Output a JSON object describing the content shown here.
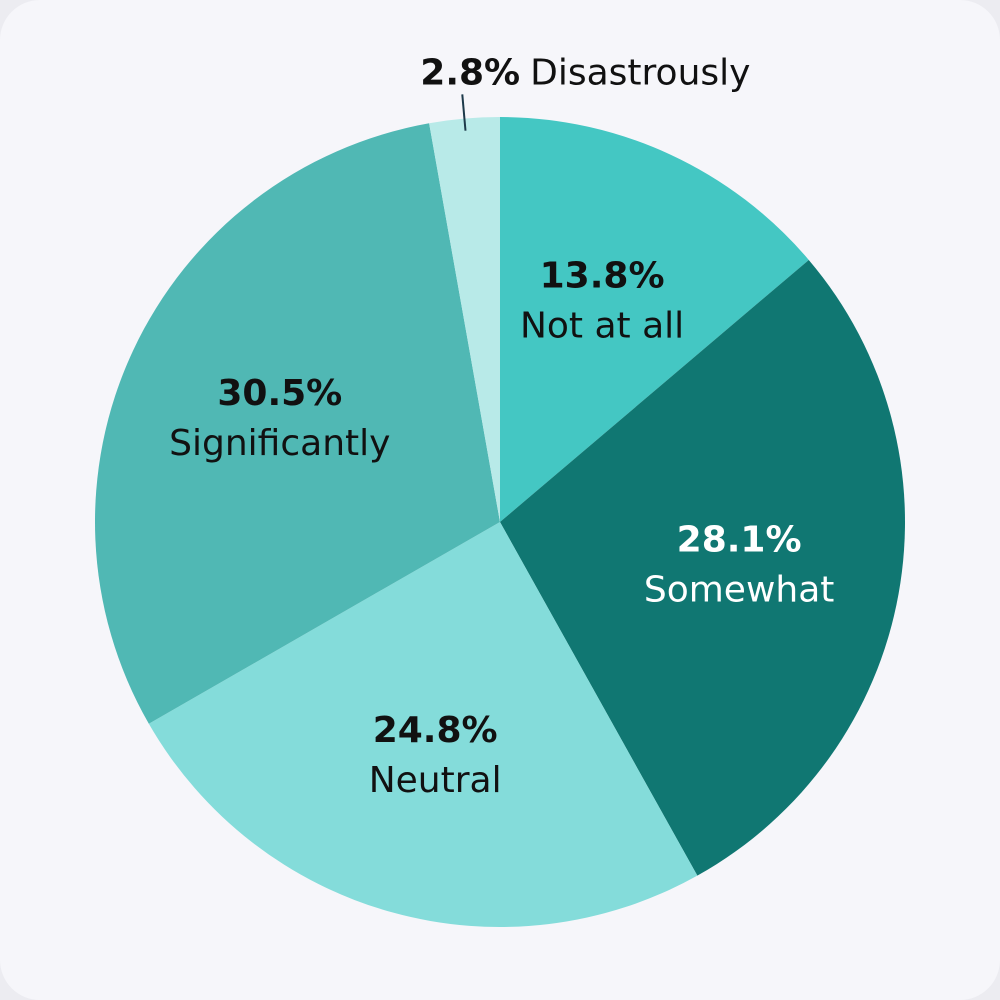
{
  "chart_data": {
    "type": "pie",
    "categories": [
      "Not at all",
      "Somewhat",
      "Neutral",
      "Significantly",
      "Disastrously"
    ],
    "values": [
      13.8,
      28.1,
      24.8,
      30.5,
      2.8
    ],
    "value_labels": [
      "13.8%",
      "28.1%",
      "24.8%",
      "30.5%",
      "2.8%"
    ],
    "colors": [
      "#44c7c3",
      "#107772",
      "#84dcda",
      "#50b8b4",
      "#b8eae8"
    ]
  }
}
